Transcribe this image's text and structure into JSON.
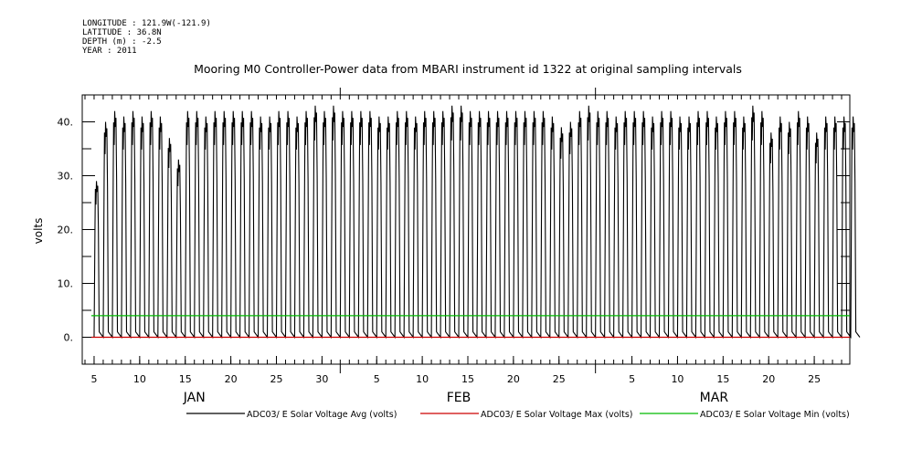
{
  "meta": {
    "longitude": "LONGITUDE : 121.9W(-121.9)",
    "latitude": "LATITUDE : 36.8N",
    "depth": "DEPTH (m) : -2.5",
    "year": "YEAR : 2011"
  },
  "chart_data": {
    "type": "line",
    "title": "Mooring M0 Controller-Power data from MBARI instrument id 1322 at original sampling intervals",
    "ylabel": "volts",
    "xlabel": "",
    "ylim": [
      -5,
      45
    ],
    "yticks": [
      0,
      10,
      20,
      30,
      40
    ],
    "ytick_labels": [
      "0.",
      "10.",
      "20.",
      "30.",
      "40."
    ],
    "xlim_days": [
      3.7,
      87.9
    ],
    "xticks": [
      {
        "day": 5,
        "label": "5"
      },
      {
        "day": 10,
        "label": "10"
      },
      {
        "day": 15,
        "label": "15"
      },
      {
        "day": 20,
        "label": "20"
      },
      {
        "day": 25,
        "label": "25"
      },
      {
        "day": 30,
        "label": "30"
      },
      {
        "day": 36,
        "label": "5"
      },
      {
        "day": 41,
        "label": "10"
      },
      {
        "day": 46,
        "label": "15"
      },
      {
        "day": 51,
        "label": "20"
      },
      {
        "day": 56,
        "label": "25"
      },
      {
        "day": 64,
        "label": "5"
      },
      {
        "day": 69,
        "label": "10"
      },
      {
        "day": 74,
        "label": "15"
      },
      {
        "day": 79,
        "label": "20"
      },
      {
        "day": 84,
        "label": "25"
      }
    ],
    "month_labels": [
      {
        "day": 16,
        "label": "JAN"
      },
      {
        "day": 45,
        "label": "FEB"
      },
      {
        "day": 73,
        "label": "MAR"
      }
    ],
    "month_boundaries": [
      32,
      60
    ],
    "grid": false,
    "legend_position": "bottom",
    "series": [
      {
        "name": "ADC03/ E Solar Voltage Avg (volts)",
        "color": "#000000",
        "daily_start_day": 5,
        "daily_peak_values": [
          29,
          40,
          42,
          41,
          42,
          41,
          42,
          41,
          37,
          33,
          42,
          42,
          41,
          42,
          42,
          42,
          42,
          42,
          41,
          41,
          42,
          42,
          41,
          42,
          43,
          42,
          43,
          42,
          42,
          42,
          42,
          41,
          41,
          42,
          42,
          41,
          42,
          42,
          42,
          43,
          43,
          42,
          42,
          42,
          42,
          42,
          42,
          42,
          42,
          42,
          41,
          39,
          40,
          42,
          43,
          42,
          42,
          41,
          42,
          42,
          42,
          41,
          42,
          42,
          41,
          41,
          42,
          42,
          41,
          42,
          42,
          41,
          43,
          42,
          38,
          41,
          40,
          42,
          41,
          38,
          41,
          41,
          41,
          41
        ],
        "daily_min_values": [
          0,
          0,
          0,
          0,
          0,
          0,
          0,
          0,
          0,
          0,
          0,
          0,
          0,
          0,
          0,
          0,
          0,
          0,
          0,
          0,
          0,
          0,
          0,
          0,
          0,
          0,
          0,
          0,
          0,
          0,
          0,
          0,
          0,
          0,
          0,
          0,
          0,
          0,
          0,
          0,
          0,
          0,
          0,
          0,
          0,
          0,
          0,
          0,
          0,
          0,
          0,
          0,
          0,
          0,
          0,
          0,
          0,
          0,
          0,
          0,
          0,
          0,
          0,
          0,
          0,
          0,
          0,
          0,
          0,
          0,
          0,
          0,
          0,
          0,
          0,
          0,
          0,
          0,
          0,
          0,
          0,
          0,
          0,
          0
        ]
      },
      {
        "name": "ADC03/ E Solar Voltage Max (volts)",
        "color": "#cc0000",
        "x": [
          4.7,
          87.9
        ],
        "y": [
          0,
          0
        ]
      },
      {
        "name": "ADC03/ E Solar Voltage Min (volts)",
        "color": "#00bb00",
        "x": [
          4.7,
          87.9
        ],
        "y": [
          4,
          4
        ]
      }
    ]
  }
}
